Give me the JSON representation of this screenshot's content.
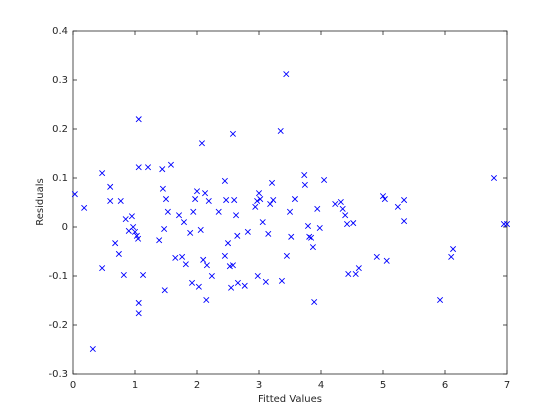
{
  "chart_data": {
    "type": "scatter",
    "xlabel": "Fitted Values",
    "ylabel": "Residuals",
    "xlim": [
      0,
      7
    ],
    "ylim": [
      -0.3,
      0.4
    ],
    "xticks": [
      0,
      1,
      2,
      3,
      4,
      5,
      6,
      7
    ],
    "yticks": [
      -0.3,
      -0.2,
      -0.1,
      0,
      0.1,
      0.2,
      0.3,
      0.4
    ],
    "grid": false,
    "series": [
      {
        "color": "#0000ff",
        "x": [
          0.03,
          0.18,
          0.32,
          0.47,
          0.47,
          0.6,
          0.6,
          0.68,
          0.74,
          0.77,
          0.82,
          0.85,
          0.9,
          0.95,
          0.97,
          1.0,
          1.03,
          1.05,
          1.06,
          1.06,
          1.06,
          1.06,
          1.13,
          1.21,
          1.39,
          1.44,
          1.45,
          1.47,
          1.48,
          1.5,
          1.53,
          1.58,
          1.65,
          1.71,
          1.76,
          1.79,
          1.82,
          1.89,
          1.92,
          1.94,
          1.97,
          2.0,
          2.03,
          2.06,
          2.08,
          2.1,
          2.13,
          2.15,
          2.16,
          2.19,
          2.24,
          2.35,
          2.45,
          2.45,
          2.47,
          2.5,
          2.53,
          2.55,
          2.58,
          2.58,
          2.6,
          2.63,
          2.65,
          2.66,
          2.77,
          2.82,
          2.94,
          2.97,
          2.98,
          3.0,
          3.02,
          3.06,
          3.11,
          3.15,
          3.18,
          3.21,
          3.23,
          3.35,
          3.37,
          3.44,
          3.45,
          3.5,
          3.52,
          3.58,
          3.73,
          3.74,
          3.79,
          3.81,
          3.84,
          3.87,
          3.89,
          3.94,
          3.98,
          4.05,
          4.23,
          4.32,
          4.35,
          4.39,
          4.42,
          4.44,
          4.52,
          4.56,
          4.61,
          4.9,
          5.0,
          5.03,
          5.06,
          5.24,
          5.34,
          5.34,
          5.92,
          6.1,
          6.13,
          6.79,
          6.95,
          7.0
        ],
        "values": [
          0.067,
          0.039,
          -0.249,
          0.11,
          -0.084,
          0.082,
          0.053,
          -0.033,
          -0.055,
          0.053,
          -0.098,
          0.016,
          -0.008,
          0.022,
          0,
          -0.01,
          -0.018,
          -0.024,
          0.22,
          0.122,
          -0.155,
          -0.176,
          -0.098,
          0.122,
          -0.027,
          0.118,
          0.078,
          -0.004,
          -0.129,
          0.057,
          0.031,
          0.127,
          -0.063,
          0.024,
          -0.061,
          0.01,
          -0.076,
          -0.012,
          -0.114,
          0.031,
          0.057,
          0.073,
          -0.122,
          -0.006,
          0.171,
          -0.067,
          0.069,
          -0.149,
          -0.078,
          0.053,
          -0.1,
          0.031,
          0.094,
          -0.059,
          0.055,
          -0.033,
          -0.08,
          -0.124,
          -0.078,
          0.19,
          0.055,
          0.024,
          -0.018,
          -0.114,
          -0.12,
          -0.01,
          0.041,
          0.053,
          -0.1,
          0.069,
          0.057,
          0.01,
          -0.112,
          -0.014,
          0.047,
          0.09,
          0.055,
          0.196,
          -0.11,
          0.312,
          -0.059,
          0.031,
          -0.02,
          0.057,
          0.106,
          0.086,
          0.002,
          -0.02,
          -0.022,
          -0.041,
          -0.153,
          0.037,
          -0.002,
          0.096,
          0.047,
          0.051,
          0.037,
          0.024,
          0.006,
          -0.096,
          0.008,
          -0.096,
          -0.084,
          -0.061,
          0.063,
          0.057,
          -0.069,
          0.041,
          0.055,
          0.012,
          -0.149,
          -0.061,
          -0.045,
          0.1,
          0.006,
          0.006
        ]
      }
    ]
  }
}
